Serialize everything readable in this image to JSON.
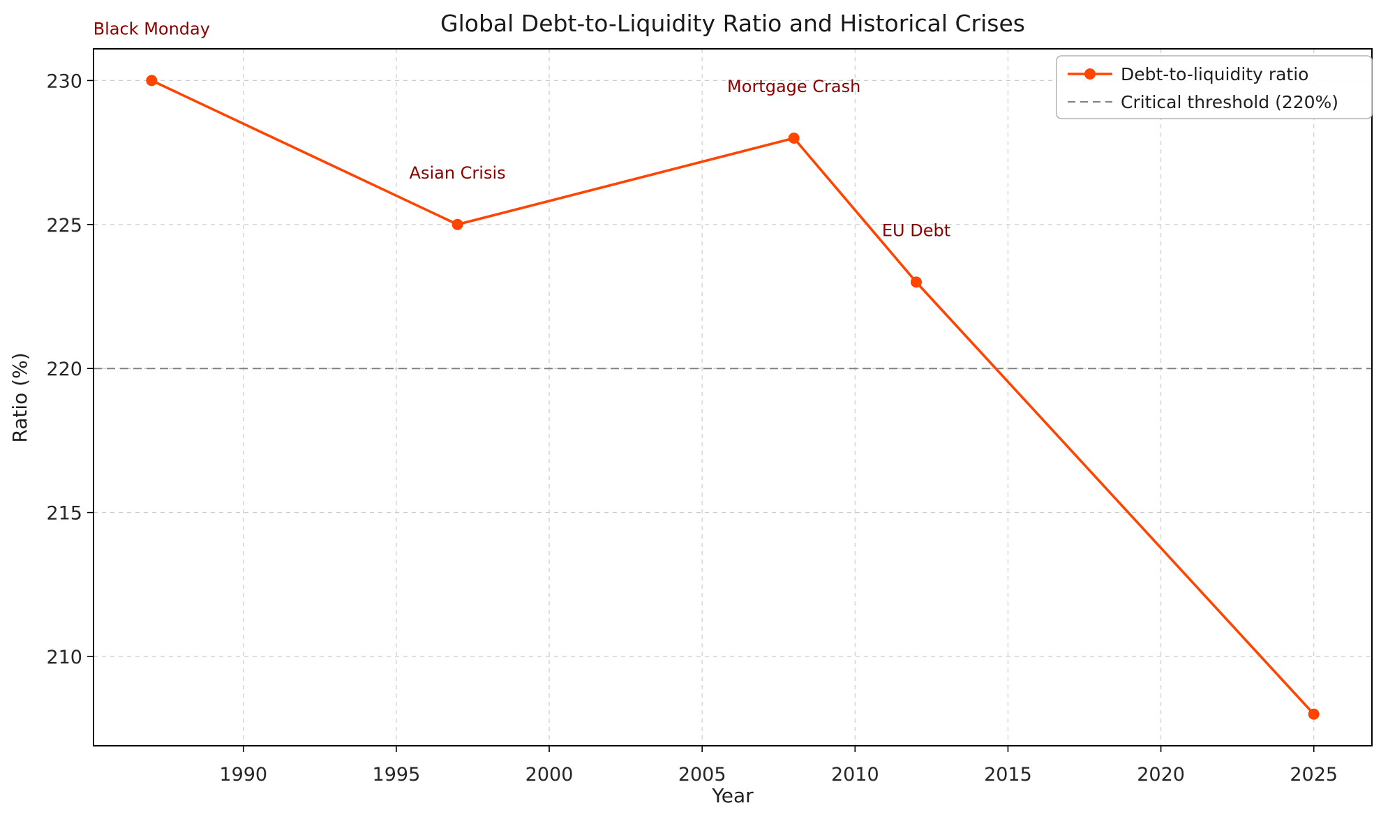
{
  "chart_data": {
    "type": "line",
    "title": "Global Debt-to-Liquidity Ratio and Historical Crises",
    "xlabel": "Year",
    "ylabel": "Ratio (%)",
    "x": [
      1987,
      1997,
      2008,
      2012,
      2025
    ],
    "series": [
      {
        "name": "Debt-to-liquidity ratio",
        "values": [
          230,
          225,
          228,
          223,
          208
        ]
      }
    ],
    "threshold": {
      "label": "Critical threshold (220%)",
      "value": 220
    },
    "annotations": [
      {
        "label": "Black Monday",
        "x": 1987,
        "y": 230
      },
      {
        "label": "Asian Crisis",
        "x": 1997,
        "y": 225
      },
      {
        "label": "Mortgage Crash",
        "x": 2008,
        "y": 228
      },
      {
        "label": "EU Debt",
        "x": 2012,
        "y": 223
      }
    ],
    "xlim": [
      1985.1,
      2026.9
    ],
    "ylim": [
      206.9,
      231.1
    ],
    "xticks": [
      1990,
      1995,
      2000,
      2005,
      2010,
      2015,
      2020,
      2025
    ],
    "yticks": [
      210,
      215,
      220,
      225,
      230
    ],
    "grid": true,
    "legend": {
      "position": "top-right",
      "entries": [
        "Debt-to-liquidity ratio",
        "Critical threshold (220%)"
      ]
    },
    "colors": {
      "series": "#ff4500",
      "threshold": "#808080",
      "annotation": "#8b0000",
      "grid": "#cccccc",
      "text": "#262626"
    }
  }
}
